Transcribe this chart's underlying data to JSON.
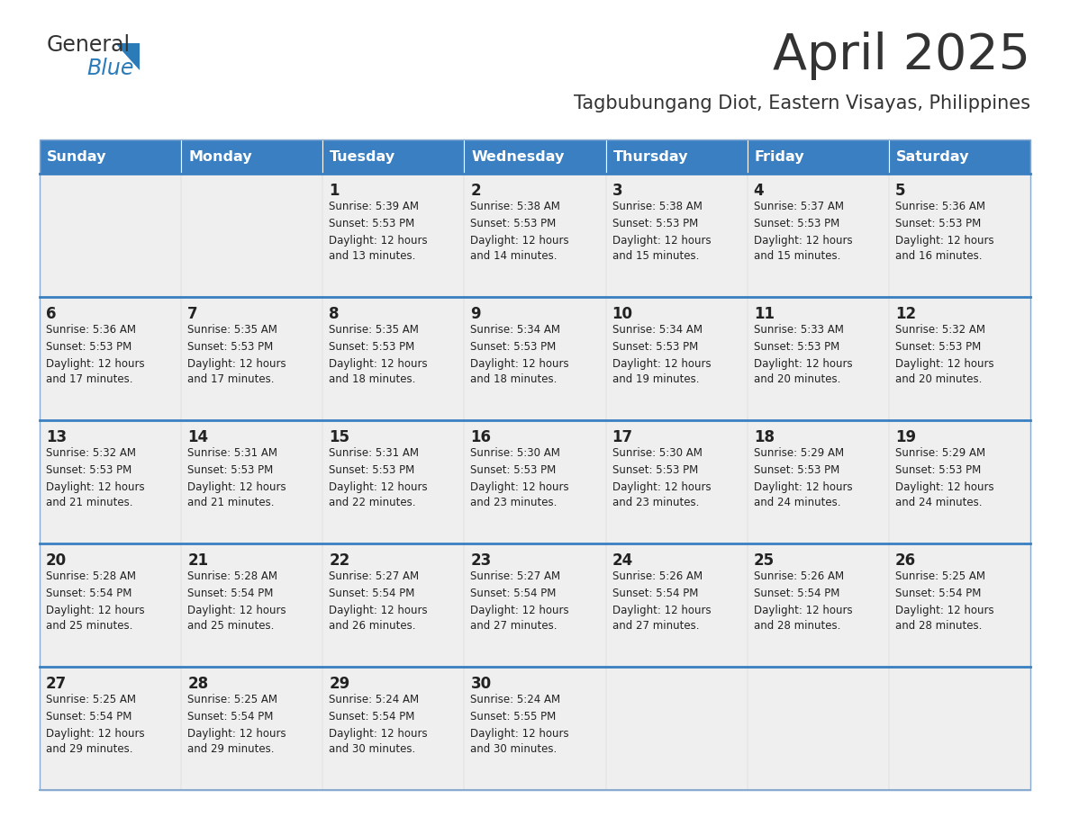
{
  "title": "April 2025",
  "subtitle": "Tagbubungang Diot, Eastern Visayas, Philippines",
  "days_of_week": [
    "Sunday",
    "Monday",
    "Tuesday",
    "Wednesday",
    "Thursday",
    "Friday",
    "Saturday"
  ],
  "header_bg": "#3A7FC1",
  "header_text_color": "#FFFFFF",
  "cell_bg": "#EFEFEF",
  "border_color": "#3A7FC1",
  "border_color_thin": "#8AABCF",
  "text_color": "#222222",
  "title_color": "#333333",
  "subtitle_color": "#333333",
  "logo_color1": "#333333",
  "logo_color2": "#2B7BB9",
  "calendar": [
    [
      {
        "day": "",
        "sunrise": "",
        "sunset": "",
        "daylight": ""
      },
      {
        "day": "",
        "sunrise": "",
        "sunset": "",
        "daylight": ""
      },
      {
        "day": "1",
        "sunrise": "Sunrise: 5:39 AM",
        "sunset": "Sunset: 5:53 PM",
        "daylight": "Daylight: 12 hours\nand 13 minutes."
      },
      {
        "day": "2",
        "sunrise": "Sunrise: 5:38 AM",
        "sunset": "Sunset: 5:53 PM",
        "daylight": "Daylight: 12 hours\nand 14 minutes."
      },
      {
        "day": "3",
        "sunrise": "Sunrise: 5:38 AM",
        "sunset": "Sunset: 5:53 PM",
        "daylight": "Daylight: 12 hours\nand 15 minutes."
      },
      {
        "day": "4",
        "sunrise": "Sunrise: 5:37 AM",
        "sunset": "Sunset: 5:53 PM",
        "daylight": "Daylight: 12 hours\nand 15 minutes."
      },
      {
        "day": "5",
        "sunrise": "Sunrise: 5:36 AM",
        "sunset": "Sunset: 5:53 PM",
        "daylight": "Daylight: 12 hours\nand 16 minutes."
      }
    ],
    [
      {
        "day": "6",
        "sunrise": "Sunrise: 5:36 AM",
        "sunset": "Sunset: 5:53 PM",
        "daylight": "Daylight: 12 hours\nand 17 minutes."
      },
      {
        "day": "7",
        "sunrise": "Sunrise: 5:35 AM",
        "sunset": "Sunset: 5:53 PM",
        "daylight": "Daylight: 12 hours\nand 17 minutes."
      },
      {
        "day": "8",
        "sunrise": "Sunrise: 5:35 AM",
        "sunset": "Sunset: 5:53 PM",
        "daylight": "Daylight: 12 hours\nand 18 minutes."
      },
      {
        "day": "9",
        "sunrise": "Sunrise: 5:34 AM",
        "sunset": "Sunset: 5:53 PM",
        "daylight": "Daylight: 12 hours\nand 18 minutes."
      },
      {
        "day": "10",
        "sunrise": "Sunrise: 5:34 AM",
        "sunset": "Sunset: 5:53 PM",
        "daylight": "Daylight: 12 hours\nand 19 minutes."
      },
      {
        "day": "11",
        "sunrise": "Sunrise: 5:33 AM",
        "sunset": "Sunset: 5:53 PM",
        "daylight": "Daylight: 12 hours\nand 20 minutes."
      },
      {
        "day": "12",
        "sunrise": "Sunrise: 5:32 AM",
        "sunset": "Sunset: 5:53 PM",
        "daylight": "Daylight: 12 hours\nand 20 minutes."
      }
    ],
    [
      {
        "day": "13",
        "sunrise": "Sunrise: 5:32 AM",
        "sunset": "Sunset: 5:53 PM",
        "daylight": "Daylight: 12 hours\nand 21 minutes."
      },
      {
        "day": "14",
        "sunrise": "Sunrise: 5:31 AM",
        "sunset": "Sunset: 5:53 PM",
        "daylight": "Daylight: 12 hours\nand 21 minutes."
      },
      {
        "day": "15",
        "sunrise": "Sunrise: 5:31 AM",
        "sunset": "Sunset: 5:53 PM",
        "daylight": "Daylight: 12 hours\nand 22 minutes."
      },
      {
        "day": "16",
        "sunrise": "Sunrise: 5:30 AM",
        "sunset": "Sunset: 5:53 PM",
        "daylight": "Daylight: 12 hours\nand 23 minutes."
      },
      {
        "day": "17",
        "sunrise": "Sunrise: 5:30 AM",
        "sunset": "Sunset: 5:53 PM",
        "daylight": "Daylight: 12 hours\nand 23 minutes."
      },
      {
        "day": "18",
        "sunrise": "Sunrise: 5:29 AM",
        "sunset": "Sunset: 5:53 PM",
        "daylight": "Daylight: 12 hours\nand 24 minutes."
      },
      {
        "day": "19",
        "sunrise": "Sunrise: 5:29 AM",
        "sunset": "Sunset: 5:53 PM",
        "daylight": "Daylight: 12 hours\nand 24 minutes."
      }
    ],
    [
      {
        "day": "20",
        "sunrise": "Sunrise: 5:28 AM",
        "sunset": "Sunset: 5:54 PM",
        "daylight": "Daylight: 12 hours\nand 25 minutes."
      },
      {
        "day": "21",
        "sunrise": "Sunrise: 5:28 AM",
        "sunset": "Sunset: 5:54 PM",
        "daylight": "Daylight: 12 hours\nand 25 minutes."
      },
      {
        "day": "22",
        "sunrise": "Sunrise: 5:27 AM",
        "sunset": "Sunset: 5:54 PM",
        "daylight": "Daylight: 12 hours\nand 26 minutes."
      },
      {
        "day": "23",
        "sunrise": "Sunrise: 5:27 AM",
        "sunset": "Sunset: 5:54 PM",
        "daylight": "Daylight: 12 hours\nand 27 minutes."
      },
      {
        "day": "24",
        "sunrise": "Sunrise: 5:26 AM",
        "sunset": "Sunset: 5:54 PM",
        "daylight": "Daylight: 12 hours\nand 27 minutes."
      },
      {
        "day": "25",
        "sunrise": "Sunrise: 5:26 AM",
        "sunset": "Sunset: 5:54 PM",
        "daylight": "Daylight: 12 hours\nand 28 minutes."
      },
      {
        "day": "26",
        "sunrise": "Sunrise: 5:25 AM",
        "sunset": "Sunset: 5:54 PM",
        "daylight": "Daylight: 12 hours\nand 28 minutes."
      }
    ],
    [
      {
        "day": "27",
        "sunrise": "Sunrise: 5:25 AM",
        "sunset": "Sunset: 5:54 PM",
        "daylight": "Daylight: 12 hours\nand 29 minutes."
      },
      {
        "day": "28",
        "sunrise": "Sunrise: 5:25 AM",
        "sunset": "Sunset: 5:54 PM",
        "daylight": "Daylight: 12 hours\nand 29 minutes."
      },
      {
        "day": "29",
        "sunrise": "Sunrise: 5:24 AM",
        "sunset": "Sunset: 5:54 PM",
        "daylight": "Daylight: 12 hours\nand 30 minutes."
      },
      {
        "day": "30",
        "sunrise": "Sunrise: 5:24 AM",
        "sunset": "Sunset: 5:55 PM",
        "daylight": "Daylight: 12 hours\nand 30 minutes."
      },
      {
        "day": "",
        "sunrise": "",
        "sunset": "",
        "daylight": ""
      },
      {
        "day": "",
        "sunrise": "",
        "sunset": "",
        "daylight": ""
      },
      {
        "day": "",
        "sunrise": "",
        "sunset": "",
        "daylight": ""
      }
    ]
  ]
}
